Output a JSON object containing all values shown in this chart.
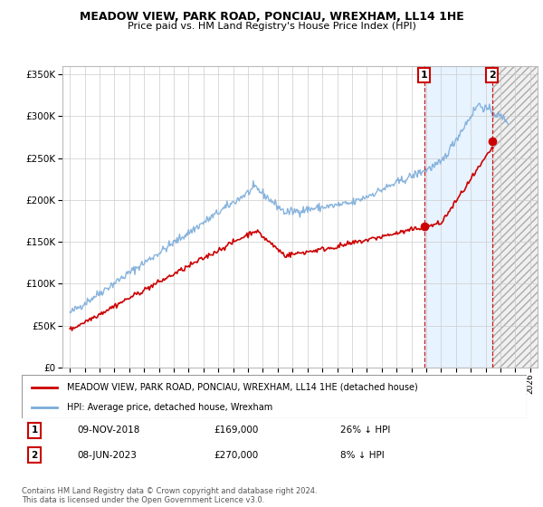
{
  "title": "MEADOW VIEW, PARK ROAD, PONCIAU, WREXHAM, LL14 1HE",
  "subtitle": "Price paid vs. HM Land Registry's House Price Index (HPI)",
  "legend_line1": "MEADOW VIEW, PARK ROAD, PONCIAU, WREXHAM, LL14 1HE (detached house)",
  "legend_line2": "HPI: Average price, detached house, Wrexham",
  "sale1_date": "09-NOV-2018",
  "sale1_price": "£169,000",
  "sale1_note": "26% ↓ HPI",
  "sale2_date": "08-JUN-2023",
  "sale2_price": "£270,000",
  "sale2_note": "8% ↓ HPI",
  "footer": "Contains HM Land Registry data © Crown copyright and database right 2024.\nThis data is licensed under the Open Government Licence v3.0.",
  "hpi_color": "#7aabda",
  "price_color": "#cc0000",
  "sale1_x": 2018.86,
  "sale2_x": 2023.44,
  "sale1_y": 169000,
  "sale2_y": 270000,
  "ylim": [
    0,
    360000
  ],
  "xlim": [
    1994.5,
    2026.5
  ],
  "yticks": [
    0,
    50000,
    100000,
    150000,
    200000,
    250000,
    300000,
    350000
  ],
  "xticks": [
    1995,
    1996,
    1997,
    1998,
    1999,
    2000,
    2001,
    2002,
    2003,
    2004,
    2005,
    2006,
    2007,
    2008,
    2009,
    2010,
    2011,
    2012,
    2013,
    2014,
    2015,
    2016,
    2017,
    2018,
    2019,
    2020,
    2021,
    2022,
    2023,
    2024,
    2025,
    2026
  ]
}
